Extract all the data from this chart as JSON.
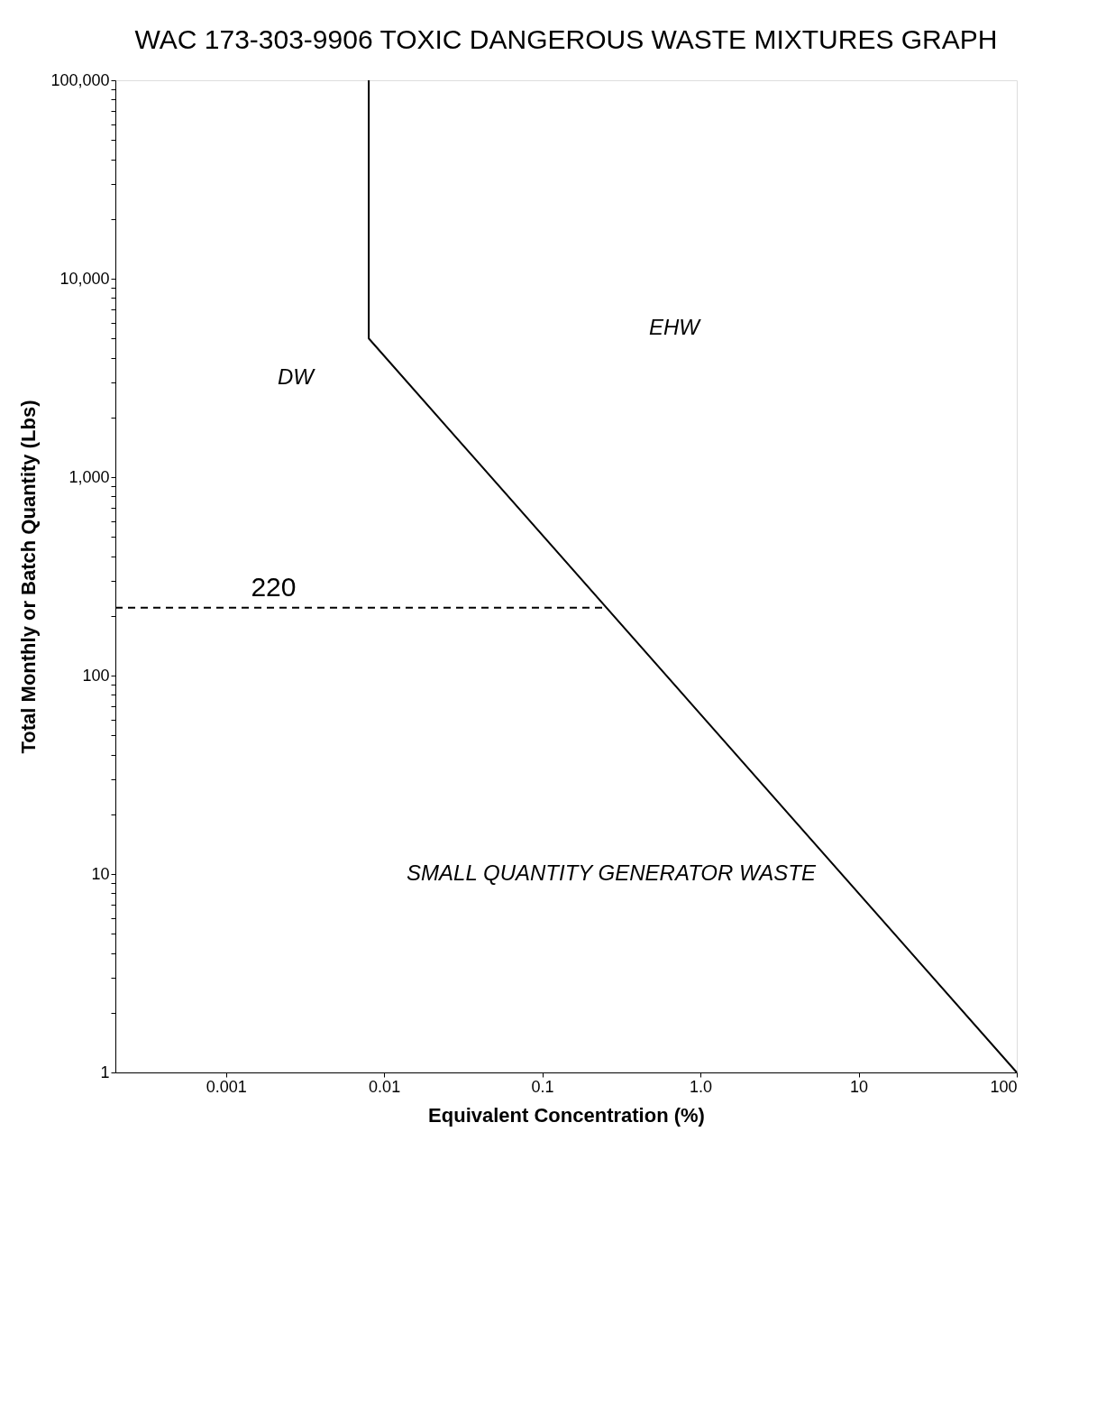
{
  "chart_data": {
    "type": "line",
    "title": "WAC 173-303-9906 TOXIC DANGEROUS WASTE MIXTURES GRAPH",
    "xlabel": "Equivalent Concentration (%)",
    "ylabel": "Total Monthly or Batch Quantity (Lbs)",
    "log": "xy",
    "grid": false,
    "xlim": [
      0.0002,
      100
    ],
    "ylim": [
      1,
      100000
    ],
    "xticks": [
      0.001,
      0.01,
      0.1,
      {
        "value": 1,
        "label": "1.0"
      },
      10,
      100
    ],
    "yticks": [
      1,
      {
        "value": 2,
        "label": null
      },
      {
        "value": 3,
        "label": null
      },
      {
        "value": 4,
        "label": null
      },
      {
        "value": 5,
        "label": null
      },
      {
        "value": 6,
        "label": null
      },
      {
        "value": 7,
        "label": null
      },
      {
        "value": 8,
        "label": null
      },
      {
        "value": 9,
        "label": null
      },
      10,
      {
        "value": 20,
        "label": null
      },
      {
        "value": 30,
        "label": null
      },
      {
        "value": 40,
        "label": null
      },
      {
        "value": 50,
        "label": null
      },
      {
        "value": 60,
        "label": null
      },
      {
        "value": 70,
        "label": null
      },
      {
        "value": 80,
        "label": null
      },
      {
        "value": 90,
        "label": null
      },
      100,
      {
        "value": 200,
        "label": null
      },
      {
        "value": 300,
        "label": null
      },
      {
        "value": 400,
        "label": null
      },
      {
        "value": 500,
        "label": null
      },
      {
        "value": 600,
        "label": null
      },
      {
        "value": 700,
        "label": null
      },
      {
        "value": 800,
        "label": null
      },
      {
        "value": 900,
        "label": null
      },
      {
        "value": 1000,
        "label": "1,000"
      },
      {
        "value": 2000,
        "label": null
      },
      {
        "value": 3000,
        "label": null
      },
      {
        "value": 4000,
        "label": null
      },
      {
        "value": 5000,
        "label": null
      },
      {
        "value": 6000,
        "label": null
      },
      {
        "value": 7000,
        "label": null
      },
      {
        "value": 8000,
        "label": null
      },
      {
        "value": 9000,
        "label": null
      },
      {
        "value": 10000,
        "label": "10,000"
      },
      {
        "value": 20000,
        "label": null
      },
      {
        "value": 30000,
        "label": null
      },
      {
        "value": 40000,
        "label": null
      },
      {
        "value": 50000,
        "label": null
      },
      {
        "value": 60000,
        "label": null
      },
      {
        "value": 70000,
        "label": null
      },
      {
        "value": 80000,
        "label": null
      },
      {
        "value": 90000,
        "label": null
      },
      {
        "value": 100000,
        "label": "100,000"
      }
    ],
    "series": [
      {
        "color": "#000000",
        "line_style": "solid",
        "x": [
          0.008,
          0.008,
          100
        ],
        "values": [
          100000,
          5000,
          1
        ]
      },
      {
        "color": "#000000",
        "line_style": "dashed",
        "x": [
          0.0002,
          0.25
        ],
        "values": [
          220,
          220
        ]
      }
    ],
    "annotations": [
      "EHW",
      "DW",
      "SMALL QUANTITY GENERATOR WASTE",
      {
        "text": "220",
        "x": 0.002,
        "y": 220
      }
    ]
  }
}
